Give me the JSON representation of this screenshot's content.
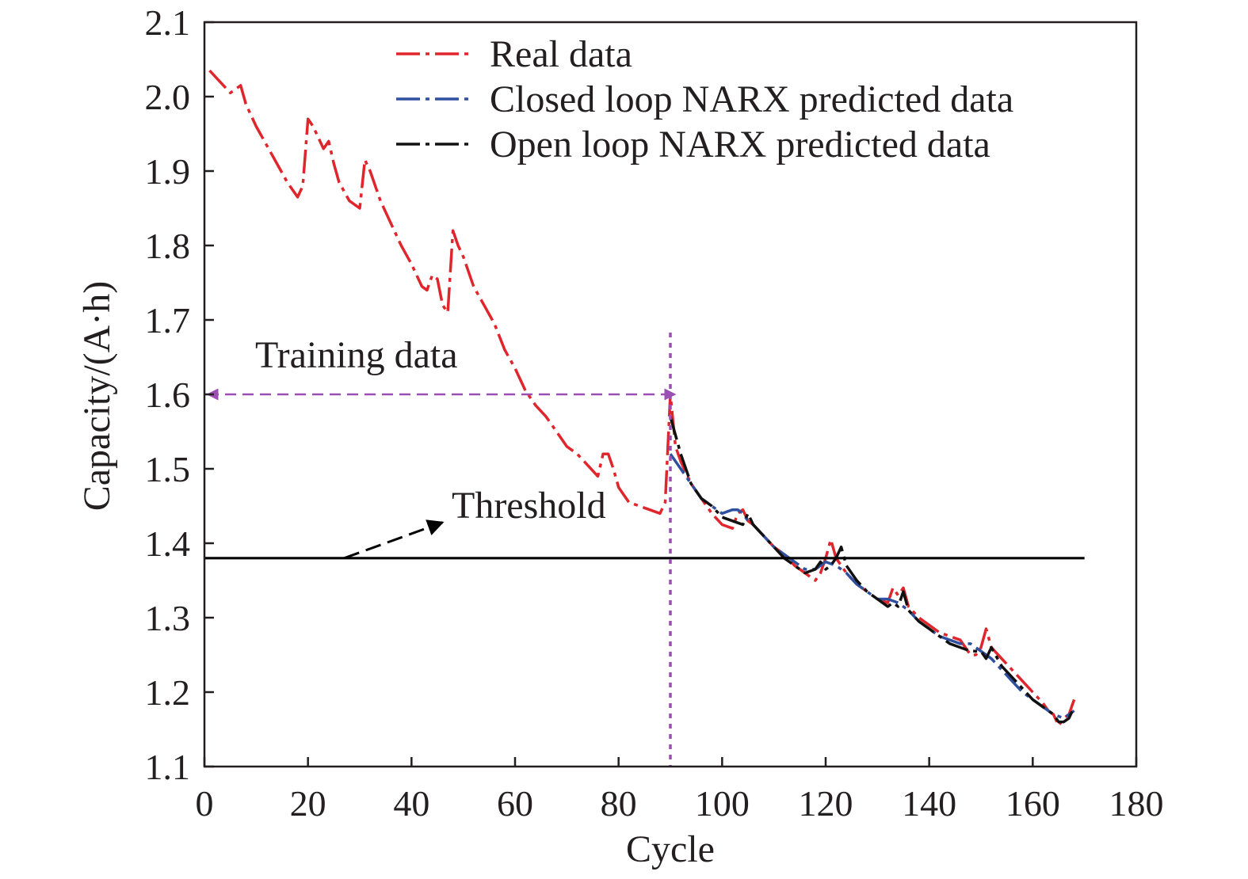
{
  "chart_data": {
    "type": "line",
    "xlabel": "Cycle",
    "ylabel": "Capacity/(A·h)",
    "xlim": [
      0,
      180
    ],
    "ylim": [
      1.1,
      2.1
    ],
    "xticks": [
      "0",
      "20",
      "40",
      "60",
      "80",
      "100",
      "120",
      "140",
      "160",
      "180"
    ],
    "yticks": [
      "1.1",
      "1.2",
      "1.3",
      "1.4",
      "1.5",
      "1.6",
      "1.7",
      "1.8",
      "1.9",
      "2.0",
      "2.1"
    ],
    "grid": false,
    "legend_position": "top-right",
    "series": [
      {
        "name": "Real data",
        "color": "#e0262d",
        "dash": "dashdot",
        "x": [
          1,
          3,
          5,
          6,
          7,
          8,
          10,
          12,
          14,
          16,
          18,
          19,
          20,
          21,
          22,
          23,
          24,
          25,
          26,
          28,
          30,
          31,
          32,
          34,
          36,
          38,
          40,
          42,
          43,
          44,
          45,
          46,
          47,
          48,
          49,
          50,
          52,
          54,
          56,
          58,
          60,
          62,
          64,
          66,
          68,
          70,
          72,
          74,
          76,
          77,
          78,
          79,
          80,
          82,
          84,
          86,
          88,
          89,
          90,
          91,
          92,
          94,
          96,
          98,
          100,
          102,
          103,
          104,
          105,
          106,
          108,
          110,
          112,
          114,
          116,
          118,
          119,
          120,
          121,
          122,
          123,
          124,
          126,
          128,
          130,
          132,
          133,
          134,
          135,
          136,
          138,
          140,
          142,
          144,
          146,
          148,
          149,
          150,
          151,
          152,
          154,
          156,
          158,
          160,
          162,
          163,
          164,
          165,
          166,
          167,
          168
        ],
        "y": [
          2.035,
          2.02,
          2.005,
          2.01,
          2.015,
          1.99,
          1.96,
          1.935,
          1.91,
          1.885,
          1.865,
          1.88,
          1.97,
          1.96,
          1.945,
          1.93,
          1.94,
          1.91,
          1.885,
          1.86,
          1.85,
          1.915,
          1.9,
          1.86,
          1.83,
          1.8,
          1.775,
          1.745,
          1.74,
          1.76,
          1.755,
          1.72,
          1.71,
          1.82,
          1.8,
          1.785,
          1.745,
          1.72,
          1.695,
          1.66,
          1.635,
          1.605,
          1.585,
          1.57,
          1.55,
          1.53,
          1.52,
          1.505,
          1.49,
          1.52,
          1.52,
          1.5,
          1.475,
          1.455,
          1.45,
          1.445,
          1.44,
          1.455,
          1.6,
          1.53,
          1.51,
          1.48,
          1.46,
          1.44,
          1.425,
          1.42,
          1.44,
          1.445,
          1.43,
          1.425,
          1.41,
          1.395,
          1.385,
          1.37,
          1.36,
          1.35,
          1.36,
          1.38,
          1.405,
          1.38,
          1.37,
          1.36,
          1.345,
          1.335,
          1.325,
          1.32,
          1.34,
          1.33,
          1.34,
          1.315,
          1.3,
          1.29,
          1.28,
          1.275,
          1.27,
          1.25,
          1.25,
          1.26,
          1.285,
          1.26,
          1.245,
          1.23,
          1.215,
          1.2,
          1.185,
          1.175,
          1.17,
          1.155,
          1.165,
          1.17,
          1.19
        ]
      },
      {
        "name": "Closed loop NARX predicted data",
        "color": "#2f4f9f",
        "dash": "dashdot",
        "x": [
          90,
          92,
          94,
          96,
          98,
          100,
          102,
          103,
          104,
          105,
          106,
          108,
          110,
          112,
          114,
          116,
          118,
          120,
          122,
          124,
          126,
          128,
          130,
          132,
          134,
          136,
          138,
          140,
          142,
          144,
          146,
          148,
          150,
          152,
          154,
          156,
          158,
          160,
          162,
          164,
          166,
          168
        ],
        "y": [
          1.52,
          1.5,
          1.48,
          1.46,
          1.45,
          1.44,
          1.445,
          1.445,
          1.44,
          1.43,
          1.425,
          1.41,
          1.395,
          1.385,
          1.375,
          1.365,
          1.365,
          1.375,
          1.37,
          1.36,
          1.345,
          1.335,
          1.325,
          1.325,
          1.32,
          1.31,
          1.295,
          1.285,
          1.275,
          1.27,
          1.265,
          1.265,
          1.255,
          1.245,
          1.23,
          1.215,
          1.2,
          1.19,
          1.18,
          1.17,
          1.165,
          1.175
        ]
      },
      {
        "name": "Open loop NARX predicted data",
        "color": "#111111",
        "dash": "dashdot",
        "x": [
          90,
          92,
          94,
          96,
          98,
          100,
          102,
          104,
          105,
          106,
          108,
          110,
          112,
          114,
          116,
          118,
          119,
          120,
          121,
          122,
          123,
          124,
          126,
          128,
          130,
          132,
          133,
          134,
          135,
          136,
          138,
          140,
          142,
          144,
          146,
          148,
          150,
          151,
          152,
          154,
          156,
          158,
          160,
          162,
          164,
          165,
          166,
          167,
          168
        ],
        "y": [
          1.57,
          1.52,
          1.48,
          1.46,
          1.45,
          1.435,
          1.43,
          1.425,
          1.44,
          1.425,
          1.41,
          1.395,
          1.38,
          1.37,
          1.36,
          1.365,
          1.375,
          1.365,
          1.37,
          1.38,
          1.395,
          1.37,
          1.35,
          1.335,
          1.325,
          1.315,
          1.32,
          1.315,
          1.335,
          1.31,
          1.295,
          1.285,
          1.275,
          1.265,
          1.26,
          1.255,
          1.255,
          1.245,
          1.26,
          1.235,
          1.22,
          1.205,
          1.19,
          1.18,
          1.17,
          1.16,
          1.16,
          1.165,
          1.18
        ]
      }
    ],
    "threshold": {
      "y": 1.38,
      "x_range": [
        0,
        170
      ],
      "color": "#000000"
    },
    "split_line": {
      "x": 90,
      "color": "#9b4fb3"
    },
    "annotations": {
      "training_label": "Training data",
      "threshold_label": "Threshold",
      "training_arrow": {
        "x_from": 0,
        "x_to": 90,
        "y": 1.6,
        "color": "#9b4fb3"
      },
      "threshold_arrow": {
        "x_from": 27,
        "y_from": 1.38,
        "x_to": 46,
        "y_to": 1.428,
        "color": "#000000"
      }
    }
  }
}
